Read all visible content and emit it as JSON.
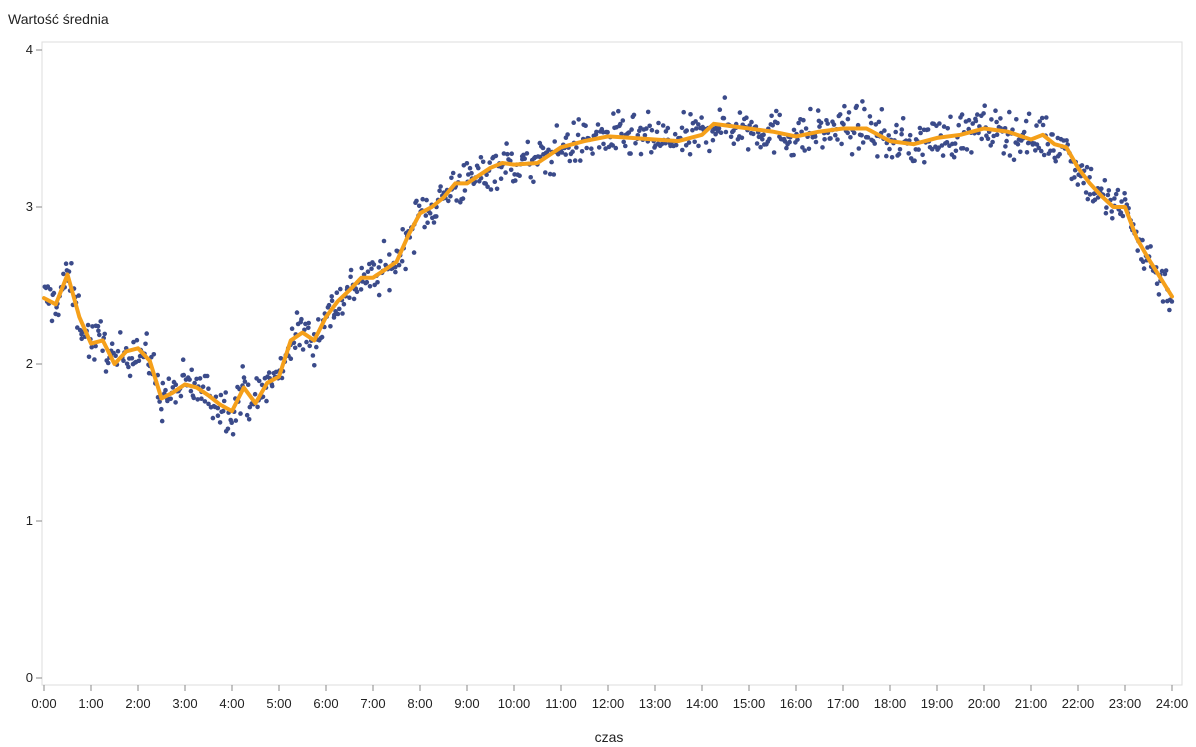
{
  "chart_data": {
    "type": "scatter",
    "title": "",
    "ylabel": "Wartość średnia",
    "xlabel": "czas",
    "xlim": [
      0,
      24
    ],
    "ylim": [
      0,
      4
    ],
    "grid": false,
    "x_ticks": [
      "0:00",
      "1:00",
      "2:00",
      "3:00",
      "4:00",
      "5:00",
      "6:00",
      "7:00",
      "8:00",
      "9:00",
      "10:00",
      "11:00",
      "12:00",
      "13:00",
      "14:00",
      "15:00",
      "16:00",
      "17:00",
      "18:00",
      "19:00",
      "20:00",
      "21:00",
      "22:00",
      "23:00",
      "24:00"
    ],
    "y_ticks": [
      0,
      1,
      2,
      3,
      4
    ],
    "colors": {
      "points": "#3b4b8a",
      "line": "#f5a01a"
    },
    "series": [
      {
        "type": "line",
        "x": [
          0.0,
          0.25,
          0.5,
          0.75,
          1.0,
          1.25,
          1.5,
          1.75,
          2.0,
          2.25,
          2.5,
          2.75,
          3.0,
          3.25,
          3.5,
          3.75,
          4.0,
          4.25,
          4.5,
          4.75,
          5.0,
          5.25,
          5.5,
          5.75,
          6.0,
          6.25,
          6.5,
          6.75,
          7.0,
          7.25,
          7.5,
          7.75,
          8.0,
          8.25,
          8.5,
          8.75,
          9.0,
          9.25,
          9.5,
          9.75,
          10.0,
          10.5,
          11.0,
          11.5,
          12.0,
          12.5,
          13.0,
          13.5,
          14.0,
          14.25,
          14.5,
          15.0,
          15.5,
          16.0,
          16.5,
          17.0,
          17.5,
          18.0,
          18.5,
          19.0,
          19.5,
          20.0,
          20.5,
          21.0,
          21.25,
          21.5,
          21.75,
          22.0,
          22.25,
          22.5,
          22.75,
          23.0,
          23.25,
          23.5,
          23.75,
          24.0
        ],
        "y": [
          2.42,
          2.38,
          2.57,
          2.3,
          2.13,
          2.15,
          2.0,
          2.08,
          2.1,
          2.02,
          1.78,
          1.82,
          1.87,
          1.85,
          1.8,
          1.74,
          1.7,
          1.85,
          1.75,
          1.88,
          1.92,
          2.15,
          2.2,
          2.15,
          2.3,
          2.4,
          2.47,
          2.55,
          2.55,
          2.6,
          2.65,
          2.82,
          2.96,
          3.0,
          3.06,
          3.15,
          3.15,
          3.2,
          3.25,
          3.28,
          3.27,
          3.28,
          3.38,
          3.42,
          3.45,
          3.44,
          3.43,
          3.42,
          3.46,
          3.53,
          3.52,
          3.5,
          3.48,
          3.45,
          3.48,
          3.5,
          3.5,
          3.42,
          3.4,
          3.44,
          3.46,
          3.5,
          3.48,
          3.43,
          3.46,
          3.4,
          3.38,
          3.25,
          3.15,
          3.07,
          3.0,
          3.0,
          2.8,
          2.67,
          2.55,
          2.43
        ]
      },
      {
        "type": "scatter",
        "points_per_hour": 40,
        "jitter": 0.07
      }
    ]
  }
}
